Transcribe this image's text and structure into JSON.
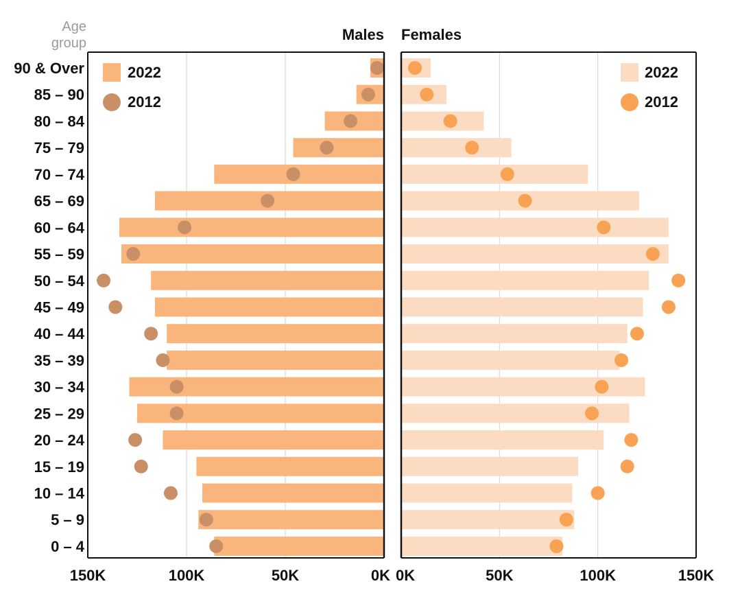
{
  "chart_data": {
    "type": "bar",
    "y_label": [
      "Age",
      "group"
    ],
    "categories": [
      "90 & Over",
      "85 – 90",
      "80 – 84",
      "75 – 79",
      "70 – 74",
      "65 – 69",
      "60 – 64",
      "55 – 59",
      "50 – 54",
      "45 – 49",
      "40 – 44",
      "35 – 39",
      "30 – 34",
      "25 – 29",
      "20 – 24",
      "15 – 19",
      "10 – 14",
      "5 – 9",
      "0 – 4"
    ],
    "males_title": "Males",
    "females_title": "Females",
    "x_ticks_left": [
      "150K",
      "100K",
      "50K",
      "0K"
    ],
    "x_ticks_right": [
      "0K",
      "50K",
      "100K",
      "150K"
    ],
    "x_max": 150000,
    "grid": "vertical",
    "series": [
      {
        "name": "2022",
        "side": "males",
        "mark": "bar",
        "color": "#F9B57B",
        "values": [
          7000,
          14000,
          30000,
          46000,
          86000,
          116000,
          134000,
          133000,
          118000,
          116000,
          110000,
          110000,
          129000,
          125000,
          112000,
          95000,
          92000,
          94000,
          86000
        ]
      },
      {
        "name": "2012",
        "side": "males",
        "mark": "dot",
        "color": "#C99067",
        "values": [
          3500,
          8000,
          17000,
          29000,
          46000,
          59000,
          101000,
          127000,
          142000,
          136000,
          118000,
          112000,
          105000,
          105000,
          126000,
          123000,
          108000,
          90000,
          85000
        ]
      },
      {
        "name": "2022",
        "side": "females",
        "mark": "bar",
        "color": "#FBDCC2",
        "values": [
          15000,
          23000,
          42000,
          56000,
          95000,
          121000,
          136000,
          136000,
          126000,
          123000,
          115000,
          111000,
          124000,
          116000,
          103000,
          90000,
          87000,
          88000,
          82000
        ]
      },
      {
        "name": "2012",
        "side": "females",
        "mark": "dot",
        "color": "#F8A254",
        "values": [
          7000,
          13000,
          25000,
          36000,
          54000,
          63000,
          103000,
          128000,
          141000,
          136000,
          120000,
          112000,
          102000,
          97000,
          117000,
          115000,
          100000,
          84000,
          79000
        ]
      }
    ],
    "legend": {
      "males": {
        "bar_label": "2022",
        "dot_label": "2012",
        "placement": "top-left"
      },
      "females": {
        "bar_label": "2022",
        "dot_label": "2012",
        "placement": "top-right"
      }
    }
  }
}
